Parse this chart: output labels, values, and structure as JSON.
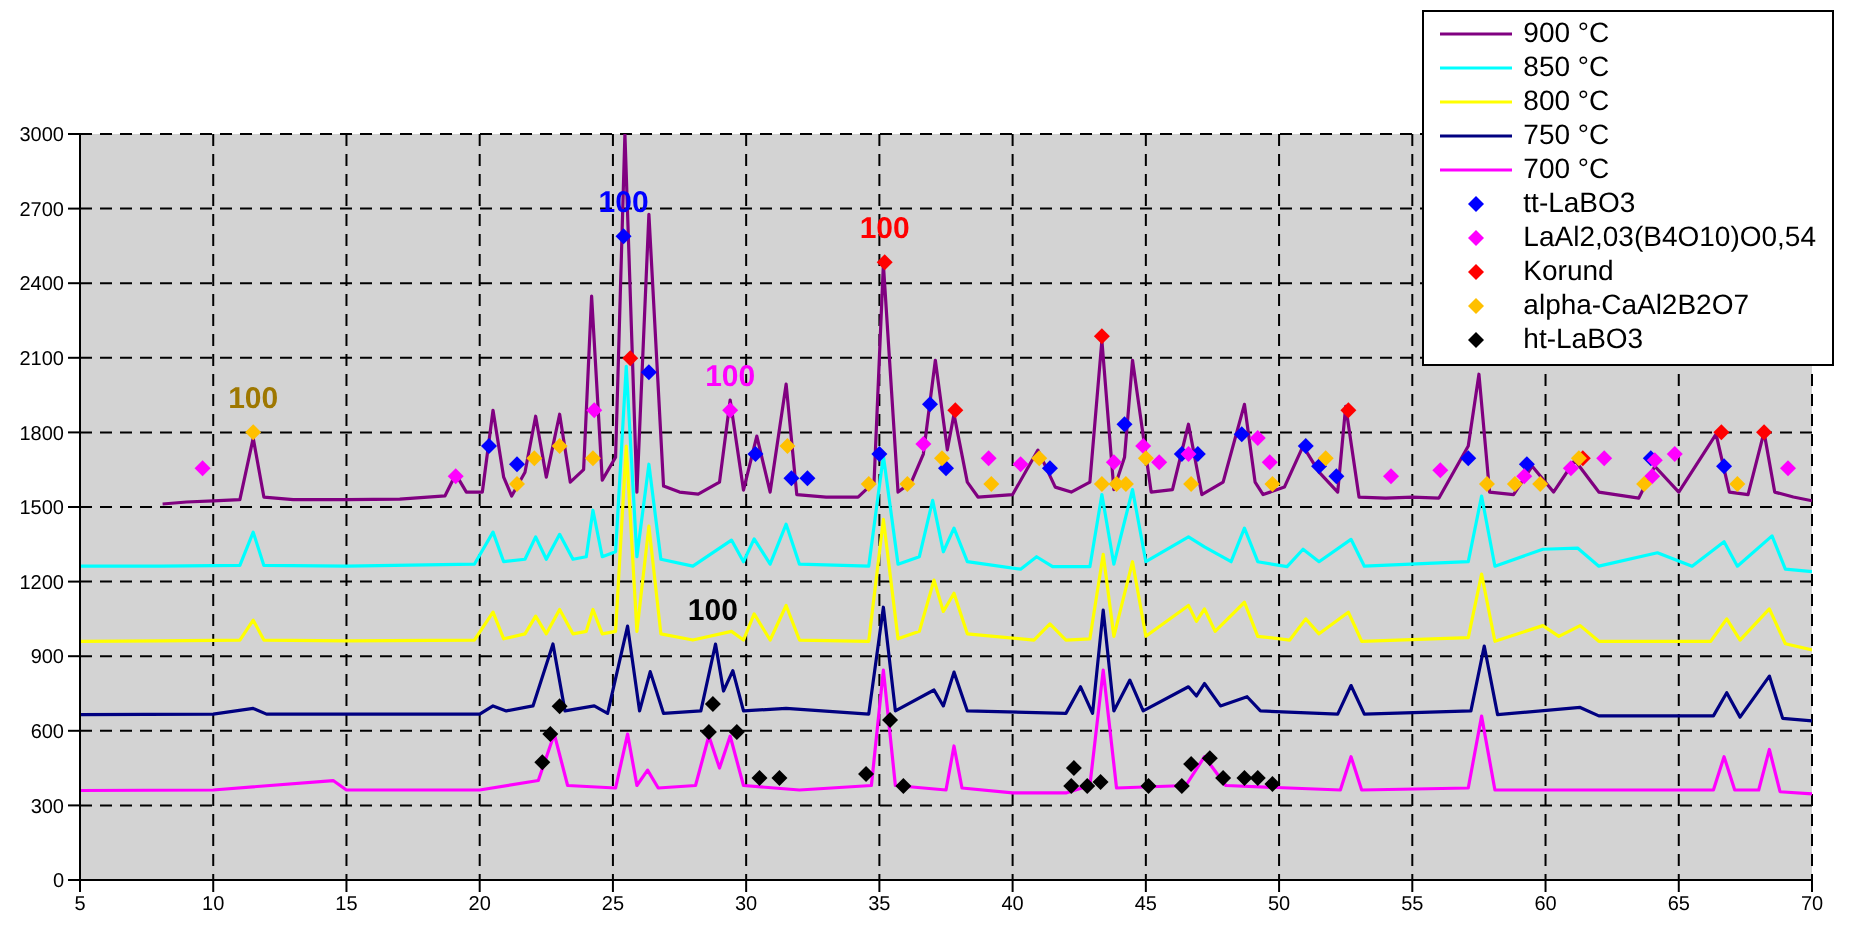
{
  "chart_data": {
    "type": "line",
    "xlim": [
      5,
      70
    ],
    "xticks": [
      5,
      10,
      15,
      20,
      25,
      30,
      35,
      40,
      45,
      50,
      55,
      60,
      65,
      70
    ],
    "ylim": [
      0,
      3000
    ],
    "yticks": [
      0,
      300,
      600,
      900,
      1200,
      1500,
      1800,
      2100,
      2400,
      2700,
      3000
    ],
    "grid": true,
    "legend": "top right",
    "marker": "none",
    "line_style": "solid",
    "series": [
      {
        "name": "900 °C",
        "color": "#800080",
        "x": [
          8.1,
          9,
          10,
          11.0,
          11.5,
          11.9,
          13,
          15,
          17,
          18.7,
          19.1,
          19.5,
          20.1,
          20.5,
          20.9,
          21.2,
          21.7,
          22.1,
          22.5,
          23.0,
          23.4,
          23.9,
          24.2,
          24.6,
          25.1,
          25.45,
          25.9,
          26.35,
          26.9,
          27.5,
          28.2,
          29.0,
          29.4,
          29.9,
          30.4,
          30.9,
          31.5,
          31.9,
          33,
          34.2,
          34.8,
          35.15,
          35.7,
          36.2,
          36.65,
          37.1,
          37.55,
          37.8,
          38.3,
          38.7,
          40.0,
          40.95,
          41.6,
          42.2,
          42.9,
          43.35,
          43.8,
          44.2,
          44.5,
          45.2,
          46.0,
          46.6,
          47.1,
          47.9,
          48.7,
          49.1,
          49.4,
          50.2,
          50.9,
          51.5,
          52.2,
          52.5,
          53.0,
          54,
          55,
          56,
          57.1,
          57.5,
          57.9,
          58.8,
          59.5,
          60.3,
          61.1,
          62.0,
          63.5,
          64.1,
          65.0,
          66.4,
          66.9,
          67.6,
          68.2,
          68.6,
          69.3,
          70
        ],
        "values": [
          1512,
          1520,
          1525,
          1530,
          1777,
          1540,
          1530,
          1530,
          1532,
          1545,
          1632,
          1560,
          1560,
          1889,
          1620,
          1544,
          1640,
          1865,
          1620,
          1873,
          1600,
          1650,
          2348,
          1608,
          1700,
          3000,
          1560,
          2677,
          1584,
          1560,
          1552,
          1600,
          1930,
          1568,
          1785,
          1560,
          1994,
          1550,
          1540,
          1540,
          1600,
          2476,
          1560,
          1600,
          1713,
          2090,
          1730,
          1873,
          1600,
          1540,
          1550,
          1729,
          1580,
          1560,
          1600,
          2170,
          1570,
          1700,
          2090,
          1560,
          1570,
          1833,
          1550,
          1600,
          1913,
          1600,
          1550,
          1580,
          1745,
          1640,
          1560,
          1905,
          1540,
          1536,
          1540,
          1536,
          1745,
          2034,
          1560,
          1550,
          1664,
          1560,
          1688,
          1560,
          1536,
          1664,
          1560,
          1793,
          1560,
          1550,
          1801,
          1560,
          1540,
          1525
        ]
      },
      {
        "name": "850 °C",
        "color": "#00ffff",
        "x": [
          5,
          8,
          11.0,
          11.5,
          11.9,
          15,
          19.8,
          20.5,
          20.9,
          21.7,
          22.1,
          22.5,
          23.0,
          23.5,
          24.0,
          24.25,
          24.6,
          25.1,
          25.5,
          25.9,
          26.35,
          26.8,
          28,
          29.45,
          29.9,
          30.3,
          30.9,
          31.5,
          32,
          34.6,
          35.15,
          35.7,
          36.5,
          37.0,
          37.4,
          37.8,
          38.3,
          40.3,
          40.9,
          41.5,
          42.9,
          43.35,
          43.8,
          44.5,
          45.0,
          46.6,
          47.2,
          48.2,
          48.7,
          49.2,
          50.3,
          50.9,
          51.5,
          52.7,
          53.2,
          57.1,
          57.6,
          58.1,
          59.9,
          61.2,
          62,
          64.2,
          65.5,
          66.7,
          67.2,
          68.5,
          69,
          70
        ],
        "values": [
          1262,
          1262,
          1265,
          1399,
          1265,
          1262,
          1270,
          1399,
          1280,
          1290,
          1380,
          1290,
          1390,
          1290,
          1300,
          1487,
          1300,
          1320,
          2066,
          1300,
          1672,
          1290,
          1262,
          1367,
          1280,
          1372,
          1270,
          1431,
          1270,
          1262,
          1705,
          1270,
          1300,
          1527,
          1320,
          1415,
          1280,
          1250,
          1300,
          1260,
          1260,
          1550,
          1270,
          1570,
          1280,
          1380,
          1340,
          1280,
          1415,
          1280,
          1260,
          1330,
          1280,
          1370,
          1262,
          1280,
          1544,
          1262,
          1330,
          1335,
          1262,
          1316,
          1262,
          1360,
          1262,
          1384,
          1250,
          1240
        ]
      },
      {
        "name": "800 °C",
        "color": "#ffff00",
        "x": [
          5,
          8,
          11.0,
          11.5,
          11.9,
          15,
          19.8,
          20.5,
          20.9,
          21.7,
          22.1,
          22.5,
          23.0,
          23.5,
          24.0,
          24.25,
          24.6,
          25.1,
          25.5,
          25.9,
          26.35,
          26.8,
          28,
          29.45,
          29.9,
          30.3,
          30.9,
          31.5,
          32,
          34.6,
          35.15,
          35.7,
          36.5,
          37.05,
          37.4,
          37.8,
          38.3,
          40.8,
          41.4,
          42,
          42.9,
          43.4,
          43.8,
          44.5,
          45.0,
          46.6,
          46.9,
          47.2,
          47.6,
          48.7,
          49.2,
          50.4,
          51.0,
          51.5,
          52.6,
          53.1,
          57.1,
          57.6,
          58.1,
          59.9,
          60.5,
          61.3,
          62,
          66.2,
          66.8,
          67.3,
          68.4,
          69,
          70
        ],
        "values": [
          960,
          962,
          965,
          1045,
          965,
          962,
          965,
          1077,
          970,
          990,
          1061,
          990,
          1088,
          990,
          1000,
          1088,
          990,
          1000,
          1745,
          1000,
          1423,
          990,
          965,
          1000,
          965,
          1070,
          965,
          1104,
          965,
          960,
          1450,
          970,
          1000,
          1206,
          1080,
          1153,
          990,
          965,
          1030,
          965,
          970,
          1310,
          980,
          1280,
          980,
          1104,
          1040,
          1090,
          1000,
          1117,
          980,
          965,
          1050,
          990,
          1077,
          960,
          975,
          1230,
          960,
          1023,
          980,
          1023,
          960,
          960,
          1050,
          965,
          1090,
          950,
          925
        ]
      },
      {
        "name": "750 °C",
        "color": "#000080",
        "x": [
          5,
          10,
          11.5,
          12,
          20,
          20.5,
          21,
          22.0,
          22.75,
          23.2,
          24.3,
          24.8,
          25.55,
          26.0,
          26.4,
          26.9,
          28.3,
          28.85,
          29.15,
          29.5,
          29.9,
          31.5,
          34.6,
          35.15,
          35.6,
          37.05,
          37.4,
          37.8,
          38.3,
          42.0,
          42.55,
          43.0,
          43.4,
          43.8,
          44.4,
          44.9,
          46.6,
          46.9,
          47.2,
          47.8,
          48.8,
          49.3,
          52.2,
          52.7,
          53.2,
          57.2,
          57.7,
          58.2,
          61.3,
          62,
          66.3,
          66.8,
          67.3,
          68.4,
          68.9,
          70
        ],
        "values": [
          665,
          667,
          690,
          667,
          667,
          700,
          680,
          700,
          949,
          680,
          700,
          670,
          1021,
          680,
          838,
          670,
          680,
          949,
          760,
          842,
          680,
          690,
          667,
          1097,
          680,
          764,
          700,
          836,
          680,
          670,
          777,
          670,
          1085,
          680,
          804,
          680,
          777,
          740,
          790,
          700,
          737,
          680,
          667,
          782,
          667,
          680,
          941,
          665,
          694,
          660,
          660,
          753,
          655,
          820,
          650,
          640
        ]
      },
      {
        "name": "700 °C",
        "color": "#ff00ff",
        "x": [
          5,
          10,
          14.5,
          15,
          20,
          22.2,
          22.8,
          23.3,
          25.1,
          25.55,
          25.9,
          26.3,
          26.7,
          28.1,
          28.6,
          29.0,
          29.4,
          29.9,
          32,
          34.7,
          35.15,
          35.6,
          37.5,
          37.8,
          38.1,
          40,
          42,
          42.9,
          43.4,
          43.9,
          46.5,
          47.2,
          48,
          52.3,
          52.7,
          53.1,
          57.1,
          57.6,
          58.1,
          66.3,
          66.7,
          67.1,
          68.0,
          68.4,
          68.8,
          70
        ],
        "values": [
          360,
          362,
          400,
          362,
          362,
          400,
          587,
          380,
          370,
          587,
          380,
          442,
          370,
          380,
          579,
          450,
          579,
          380,
          362,
          380,
          844,
          380,
          362,
          539,
          370,
          350,
          350,
          380,
          844,
          370,
          380,
          496,
          380,
          362,
          496,
          362,
          370,
          659,
          362,
          362,
          496,
          362,
          362,
          525,
          355,
          346
        ]
      },
      {
        "name": "tt-LaBO3",
        "type": "scatter",
        "marker": "diamond",
        "color": "#0000ff",
        "x": [
          20.35,
          21.4,
          25.4,
          26.35,
          30.35,
          31.7,
          32.3,
          35.0,
          36.9,
          37.5,
          41.4,
          44.2,
          46.35,
          46.95,
          48.6,
          51.0,
          51.5,
          52.15,
          57.1,
          59.3,
          63.95,
          66.7
        ],
        "values": [
          1745,
          1672,
          2589,
          2042,
          1713,
          1616,
          1616,
          1713,
          1913,
          1656,
          1656,
          1833,
          1713,
          1713,
          1793,
          1745,
          1664,
          1624,
          1696,
          1672,
          1696,
          1664
        ]
      },
      {
        "name": "LaAl2,03(B4O10)O0,54",
        "type": "scatter",
        "marker": "diamond",
        "color": "#ff00ff",
        "x": [
          9.6,
          19.1,
          24.3,
          29.4,
          36.65,
          39.1,
          40.3,
          43.8,
          44.9,
          45.5,
          46.6,
          49.2,
          49.65,
          54.2,
          56.05,
          59.2,
          60.95,
          62.2,
          64.0,
          64.1,
          64.85,
          69.1
        ],
        "values": [
          1656,
          1624,
          1889,
          1889,
          1753,
          1696,
          1672,
          1680,
          1745,
          1680,
          1713,
          1777,
          1680,
          1624,
          1648,
          1624,
          1656,
          1696,
          1624,
          1688,
          1713,
          1656
        ]
      },
      {
        "name": "Korund",
        "type": "scatter",
        "marker": "diamond",
        "color": "#ff0000",
        "x": [
          25.65,
          35.2,
          37.85,
          43.35,
          52.6,
          61.4,
          66.6,
          68.2
        ],
        "values": [
          2098,
          2484,
          1889,
          2187,
          1889,
          1696,
          1801,
          1801
        ]
      },
      {
        "name": "alpha-CaAl2B2O7",
        "type": "scatter",
        "marker": "diamond",
        "color": "#ffc000",
        "x": [
          11.5,
          21.4,
          22.05,
          23.0,
          24.25,
          31.55,
          34.6,
          36.05,
          37.35,
          39.2,
          41.0,
          43.35,
          43.9,
          44.25,
          45.0,
          46.7,
          49.75,
          51.75,
          57.8,
          58.85,
          59.8,
          61.25,
          63.7,
          67.2
        ],
        "values": [
          1801,
          1592,
          1696,
          1745,
          1696,
          1745,
          1592,
          1592,
          1696,
          1592,
          1696,
          1592,
          1592,
          1592,
          1696,
          1592,
          1592,
          1696,
          1592,
          1592,
          1592,
          1696,
          1592,
          1592
        ]
      },
      {
        "name": "ht-LaBO3",
        "type": "scatter",
        "marker": "diamond",
        "color": "#000000",
        "x": [
          22.35,
          22.65,
          23.0,
          28.6,
          28.75,
          29.65,
          30.5,
          31.25,
          34.5,
          35.4,
          35.9,
          42.2,
          42.3,
          42.8,
          43.3,
          45.1,
          46.35,
          46.7,
          47.4,
          47.9,
          48.7,
          49.2,
          49.75
        ],
        "values": [
          474,
          587,
          699,
          595,
          708,
          595,
          410,
          410,
          426,
          643,
          378,
          378,
          450,
          378,
          394,
          378,
          378,
          466,
          490,
          410,
          410,
          410,
          386
        ]
      }
    ],
    "annotations": [
      {
        "text": "100",
        "x": 11.5,
        "y": 1801
      },
      {
        "text": "100",
        "x": 25.4,
        "y": 2589
      },
      {
        "text": "100",
        "x": 29.4,
        "y": 1889
      },
      {
        "text": "100",
        "x": 35.2,
        "y": 2484
      },
      {
        "text": "100",
        "x": 28.75,
        "y": 949
      }
    ]
  }
}
